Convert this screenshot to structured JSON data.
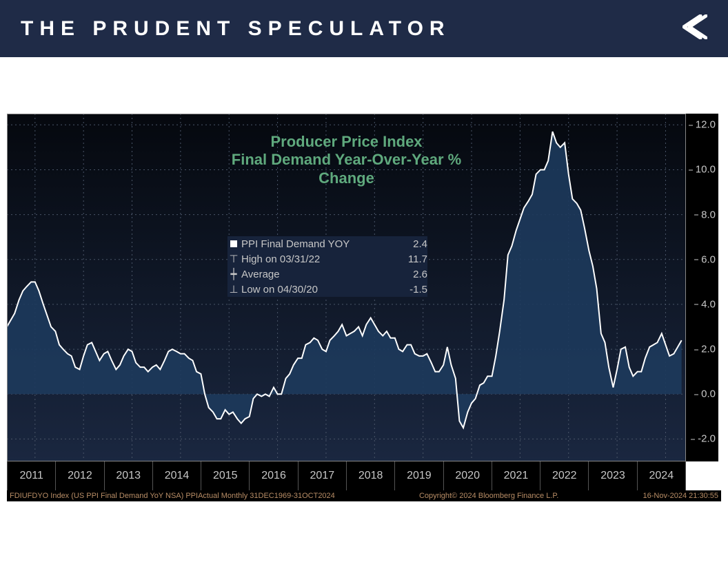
{
  "header": {
    "title": "THE PRUDENT SPECULATOR",
    "bg_color": "#1f2b47",
    "text_color": "#ffffff",
    "logo_color": "#ffffff"
  },
  "chart": {
    "type": "area",
    "title_line1": "Producer Price Index",
    "title_line2": "Final Demand Year-Over-Year %",
    "title_line3": "Change",
    "title_color": "#5fa97d",
    "title_fontsize": 22,
    "background_color": "#0d1420",
    "background_gradient_top": "#05080e",
    "background_gradient_bottom": "#1a2740",
    "grid_color": "#4a5568",
    "axis_text_color": "#c7c7c7",
    "axis_bg_color": "#000000",
    "area_fill_color": "#1d3a5c",
    "line_color": "#ffffff",
    "line_width": 2,
    "ylim": [
      -3,
      12.5
    ],
    "ytick_values": [
      -2,
      0,
      2,
      4,
      6,
      8,
      10,
      12
    ],
    "ytick_labels": [
      "-2.0",
      "0.0",
      "2.0",
      "4.0",
      "6.0",
      "8.0",
      "10.0",
      "12.0"
    ],
    "x_labels": [
      "2011",
      "2012",
      "2013",
      "2014",
      "2015",
      "2016",
      "2017",
      "2018",
      "2019",
      "2020",
      "2021",
      "2022",
      "2023",
      "2024"
    ],
    "x_range": [
      2010.92,
      2024.92
    ],
    "series": [
      [
        2010.92,
        3.0
      ],
      [
        2011.08,
        3.6
      ],
      [
        2011.17,
        4.2
      ],
      [
        2011.25,
        4.6
      ],
      [
        2011.33,
        4.8
      ],
      [
        2011.42,
        5.0
      ],
      [
        2011.5,
        5.0
      ],
      [
        2011.58,
        4.6
      ],
      [
        2011.67,
        4.0
      ],
      [
        2011.75,
        3.5
      ],
      [
        2011.83,
        3.0
      ],
      [
        2011.92,
        2.8
      ],
      [
        2012.0,
        2.2
      ],
      [
        2012.08,
        2.0
      ],
      [
        2012.17,
        1.8
      ],
      [
        2012.25,
        1.7
      ],
      [
        2012.33,
        1.2
      ],
      [
        2012.42,
        1.1
      ],
      [
        2012.5,
        1.7
      ],
      [
        2012.58,
        2.2
      ],
      [
        2012.67,
        2.3
      ],
      [
        2012.75,
        1.9
      ],
      [
        2012.83,
        1.5
      ],
      [
        2012.92,
        1.8
      ],
      [
        2013.0,
        1.9
      ],
      [
        2013.08,
        1.5
      ],
      [
        2013.17,
        1.1
      ],
      [
        2013.25,
        1.3
      ],
      [
        2013.33,
        1.7
      ],
      [
        2013.42,
        2.0
      ],
      [
        2013.5,
        1.9
      ],
      [
        2013.58,
        1.4
      ],
      [
        2013.67,
        1.2
      ],
      [
        2013.75,
        1.2
      ],
      [
        2013.83,
        1.0
      ],
      [
        2013.92,
        1.2
      ],
      [
        2014.0,
        1.3
      ],
      [
        2014.08,
        1.1
      ],
      [
        2014.17,
        1.5
      ],
      [
        2014.25,
        1.9
      ],
      [
        2014.33,
        2.0
      ],
      [
        2014.42,
        1.9
      ],
      [
        2014.5,
        1.8
      ],
      [
        2014.58,
        1.8
      ],
      [
        2014.67,
        1.6
      ],
      [
        2014.75,
        1.5
      ],
      [
        2014.83,
        1.0
      ],
      [
        2014.92,
        0.9
      ],
      [
        2015.0,
        0.0
      ],
      [
        2015.08,
        -0.6
      ],
      [
        2015.17,
        -0.8
      ],
      [
        2015.25,
        -1.1
      ],
      [
        2015.33,
        -1.1
      ],
      [
        2015.42,
        -0.7
      ],
      [
        2015.5,
        -0.9
      ],
      [
        2015.58,
        -0.8
      ],
      [
        2015.67,
        -1.1
      ],
      [
        2015.75,
        -1.3
      ],
      [
        2015.83,
        -1.1
      ],
      [
        2015.92,
        -1.0
      ],
      [
        2016.0,
        -0.2
      ],
      [
        2016.08,
        0.0
      ],
      [
        2016.17,
        -0.1
      ],
      [
        2016.25,
        0.0
      ],
      [
        2016.33,
        -0.1
      ],
      [
        2016.42,
        0.3
      ],
      [
        2016.5,
        0.0
      ],
      [
        2016.58,
        0.0
      ],
      [
        2016.67,
        0.7
      ],
      [
        2016.75,
        0.9
      ],
      [
        2016.83,
        1.3
      ],
      [
        2016.92,
        1.6
      ],
      [
        2017.0,
        1.6
      ],
      [
        2017.08,
        2.2
      ],
      [
        2017.17,
        2.3
      ],
      [
        2017.25,
        2.5
      ],
      [
        2017.33,
        2.4
      ],
      [
        2017.42,
        2.0
      ],
      [
        2017.5,
        1.9
      ],
      [
        2017.58,
        2.4
      ],
      [
        2017.67,
        2.6
      ],
      [
        2017.75,
        2.8
      ],
      [
        2017.83,
        3.1
      ],
      [
        2017.92,
        2.6
      ],
      [
        2018.0,
        2.7
      ],
      [
        2018.08,
        2.8
      ],
      [
        2018.17,
        3.0
      ],
      [
        2018.25,
        2.6
      ],
      [
        2018.33,
        3.1
      ],
      [
        2018.42,
        3.4
      ],
      [
        2018.5,
        3.1
      ],
      [
        2018.58,
        2.8
      ],
      [
        2018.67,
        2.6
      ],
      [
        2018.75,
        2.8
      ],
      [
        2018.83,
        2.5
      ],
      [
        2018.92,
        2.5
      ],
      [
        2019.0,
        2.0
      ],
      [
        2019.08,
        1.9
      ],
      [
        2019.17,
        2.2
      ],
      [
        2019.25,
        2.2
      ],
      [
        2019.33,
        1.8
      ],
      [
        2019.42,
        1.7
      ],
      [
        2019.5,
        1.7
      ],
      [
        2019.58,
        1.8
      ],
      [
        2019.67,
        1.4
      ],
      [
        2019.75,
        1.0
      ],
      [
        2019.83,
        1.0
      ],
      [
        2019.92,
        1.3
      ],
      [
        2020.0,
        2.1
      ],
      [
        2020.08,
        1.3
      ],
      [
        2020.17,
        0.7
      ],
      [
        2020.25,
        -1.2
      ],
      [
        2020.33,
        -1.5
      ],
      [
        2020.42,
        -0.8
      ],
      [
        2020.5,
        -0.4
      ],
      [
        2020.58,
        -0.2
      ],
      [
        2020.67,
        0.4
      ],
      [
        2020.75,
        0.5
      ],
      [
        2020.83,
        0.8
      ],
      [
        2020.92,
        0.8
      ],
      [
        2021.0,
        1.7
      ],
      [
        2021.08,
        2.8
      ],
      [
        2021.17,
        4.2
      ],
      [
        2021.25,
        6.2
      ],
      [
        2021.33,
        6.6
      ],
      [
        2021.42,
        7.3
      ],
      [
        2021.5,
        7.8
      ],
      [
        2021.58,
        8.3
      ],
      [
        2021.67,
        8.6
      ],
      [
        2021.75,
        8.9
      ],
      [
        2021.83,
        9.8
      ],
      [
        2021.92,
        10.0
      ],
      [
        2022.0,
        10.0
      ],
      [
        2022.08,
        10.4
      ],
      [
        2022.17,
        11.7
      ],
      [
        2022.25,
        11.2
      ],
      [
        2022.33,
        11.0
      ],
      [
        2022.42,
        11.2
      ],
      [
        2022.5,
        9.8
      ],
      [
        2022.58,
        8.7
      ],
      [
        2022.67,
        8.5
      ],
      [
        2022.75,
        8.2
      ],
      [
        2022.83,
        7.4
      ],
      [
        2022.92,
        6.4
      ],
      [
        2023.0,
        5.7
      ],
      [
        2023.08,
        4.7
      ],
      [
        2023.17,
        2.7
      ],
      [
        2023.25,
        2.3
      ],
      [
        2023.33,
        1.2
      ],
      [
        2023.42,
        0.3
      ],
      [
        2023.5,
        1.1
      ],
      [
        2023.58,
        2.0
      ],
      [
        2023.67,
        2.1
      ],
      [
        2023.75,
        1.2
      ],
      [
        2023.83,
        0.8
      ],
      [
        2023.92,
        1.0
      ],
      [
        2024.0,
        1.0
      ],
      [
        2024.08,
        1.6
      ],
      [
        2024.17,
        2.1
      ],
      [
        2024.25,
        2.2
      ],
      [
        2024.33,
        2.3
      ],
      [
        2024.42,
        2.7
      ],
      [
        2024.5,
        2.2
      ],
      [
        2024.58,
        1.7
      ],
      [
        2024.67,
        1.8
      ],
      [
        2024.75,
        2.1
      ],
      [
        2024.83,
        2.4
      ]
    ],
    "callout": {
      "value": "2.4",
      "bg": "#ffffff",
      "text": "#000000"
    },
    "legend": {
      "bg_color": "#17233b",
      "text_color": "#c7c7c7",
      "rows": [
        {
          "sym": "square",
          "label": "PPI Final Demand YOY",
          "val": "2.4"
        },
        {
          "sym": "high",
          "label": "High on 03/31/22",
          "val": "11.7"
        },
        {
          "sym": "avg",
          "label": "Average",
          "val": "2.6"
        },
        {
          "sym": "low",
          "label": "Low on 04/30/20",
          "val": "-1.5"
        }
      ]
    },
    "footer": {
      "left": "FDIUFDYO Index (US PPI Final Demand YoY NSA) PPIActual  Monthly 31DEC1969-31OCT2024",
      "mid": "Copyright© 2024 Bloomberg Finance L.P.",
      "right": "16-Nov-2024 21:30:55",
      "text_color": "#b88d66",
      "bg_color": "#000000"
    }
  }
}
